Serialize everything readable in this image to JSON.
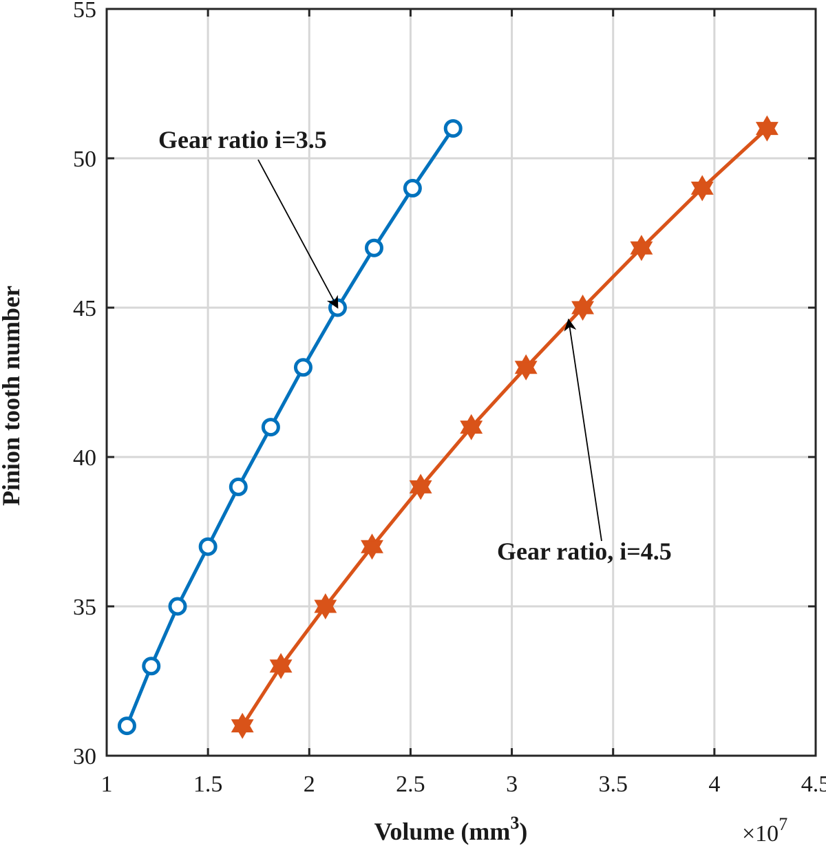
{
  "chart_data": {
    "type": "line",
    "title": "",
    "xlabel": {
      "main": "Volume (mm",
      "sup": "3",
      "close": ")"
    },
    "ylabel": "Pinion tooth number",
    "x_exponent": {
      "base": "×10",
      "power": "7"
    },
    "xlim": [
      1,
      4.5
    ],
    "ylim": [
      30,
      55
    ],
    "x_ticks": [
      1,
      1.5,
      2,
      2.5,
      3,
      3.5,
      4,
      4.5
    ],
    "x_tick_labels": [
      "1",
      "1.5",
      "2",
      "2.5",
      "3",
      "3.5",
      "4",
      "4.5"
    ],
    "y_ticks": [
      30,
      35,
      40,
      45,
      50,
      55
    ],
    "y_tick_labels": [
      "30",
      "35",
      "40",
      "45",
      "50",
      "55"
    ],
    "grid": true,
    "series": [
      {
        "color": "#0072BD",
        "marker": "circle",
        "x": [
          1.1,
          1.22,
          1.35,
          1.5,
          1.65,
          1.81,
          1.97,
          2.14,
          2.32,
          2.51,
          2.71
        ],
        "y": [
          31,
          33,
          35,
          37,
          39,
          41,
          43,
          45,
          47,
          49,
          51
        ]
      },
      {
        "color": "#D95319",
        "marker": "hexagram",
        "x": [
          1.67,
          1.86,
          2.08,
          2.31,
          2.55,
          2.8,
          3.07,
          3.35,
          3.64,
          3.94,
          4.26
        ],
        "y": [
          31,
          33,
          35,
          37,
          39,
          41,
          43,
          45,
          47,
          49,
          51
        ]
      }
    ],
    "annotations": [
      {
        "text": "Gear ratio i=3.5",
        "arrow_to": [
          2.14,
          45
        ]
      },
      {
        "text": "Gear ratio, i=4.5",
        "arrow_to": [
          3.28,
          44.6
        ]
      }
    ]
  }
}
